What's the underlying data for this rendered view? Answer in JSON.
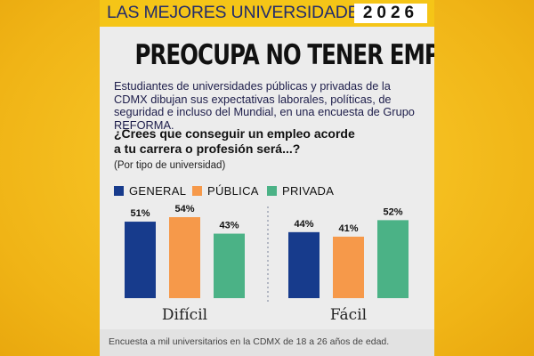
{
  "header": {
    "series_title": "LAS MEJORES UNIVERSIDADES",
    "year": "2026"
  },
  "headline": "PREOCUPA NO TENER EMPLEO",
  "intro": "Estudiantes de universidades públicas y privadas de la CDMX dibujan sus expectativas laborales, políticas, de seguridad e incluso del Mundial, en una encuesta de Grupo REFORMA.",
  "question": {
    "line1": "¿Crees que conseguir un empleo acorde",
    "line2": "a tu carrera o profesión será...?",
    "note": "(Por tipo de universidad)"
  },
  "footer": "Encuesta a mil universitarios en la CDMX de 18 a 26 años de edad.",
  "chart_data": {
    "type": "bar",
    "title": "¿Crees que conseguir un empleo acorde a tu carrera o profesión será...?",
    "subtitle": "(Por tipo de universidad)",
    "categories": [
      "Difícil",
      "Fácil"
    ],
    "series": [
      {
        "name": "GENERAL",
        "values": [
          51,
          44
        ],
        "color": "#173b8c"
      },
      {
        "name": "PÚBLICA",
        "values": [
          54,
          41
        ],
        "color": "#f6994a"
      },
      {
        "name": "PRIVADA",
        "values": [
          43,
          52
        ],
        "color": "#4bb286"
      }
    ],
    "value_suffix": "%",
    "ylim": [
      0,
      60
    ],
    "grid": false,
    "legend": "top-left"
  }
}
